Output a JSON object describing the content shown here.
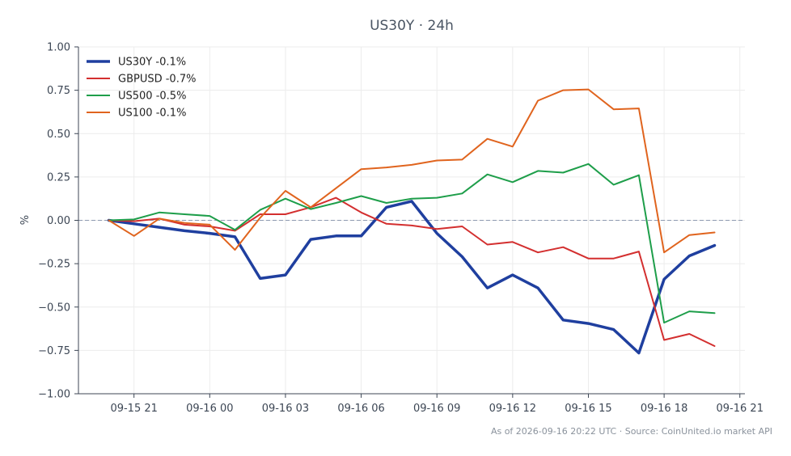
{
  "chart_data": {
    "type": "line",
    "title": "US30Y · 24h",
    "xlabel": "",
    "ylabel": "%",
    "ylim": [
      -1.0,
      1.0
    ],
    "yticks": [
      "1.00",
      "0.75",
      "0.50",
      "0.25",
      "0.00",
      "−0.25",
      "−0.50",
      "−0.75",
      "−1.00"
    ],
    "ytick_values": [
      1.0,
      0.75,
      0.5,
      0.25,
      0.0,
      -0.25,
      -0.5,
      -0.75,
      -1.0
    ],
    "xticks": [
      "09-15 21",
      "09-16 00",
      "09-16 03",
      "09-16 06",
      "09-16 09",
      "09-16 12",
      "09-16 15",
      "09-16 18",
      "09-16 21"
    ],
    "xtick_positions": [
      1,
      4,
      7,
      10,
      13,
      16,
      19,
      22,
      25
    ],
    "x_hours": [
      0,
      1,
      2,
      3,
      4,
      5,
      6,
      7,
      8,
      9,
      10,
      11,
      12,
      13,
      14,
      15,
      16,
      17,
      18,
      19,
      20,
      21,
      22,
      23,
      24
    ],
    "xlim": [
      -1.2,
      25.2
    ],
    "grid": true,
    "legend_position": "top-left",
    "baseline": 0.0,
    "series": [
      {
        "name": "US30Y -0.1%",
        "color": "#1f3f9f",
        "width": 3.5,
        "values": [
          0.0,
          -0.02,
          -0.04,
          -0.06,
          -0.075,
          -0.095,
          -0.335,
          -0.315,
          -0.11,
          -0.09,
          -0.09,
          0.075,
          0.11,
          -0.075,
          -0.21,
          -0.39,
          -0.315,
          -0.39,
          -0.575,
          -0.595,
          -0.63,
          -0.765,
          -0.34,
          -0.205,
          -0.145
        ]
      },
      {
        "name": "GBPUSD -0.7%",
        "color": "#d32f2f",
        "width": 2,
        "values": [
          0.0,
          -0.005,
          0.01,
          -0.025,
          -0.035,
          -0.06,
          0.035,
          0.035,
          0.075,
          0.13,
          0.045,
          -0.02,
          -0.03,
          -0.05,
          -0.035,
          -0.14,
          -0.125,
          -0.185,
          -0.155,
          -0.22,
          -0.22,
          -0.18,
          -0.69,
          -0.655,
          -0.725
        ]
      },
      {
        "name": "US500 -0.5%",
        "color": "#1e9e4a",
        "width": 2,
        "values": [
          0.0,
          0.005,
          0.045,
          0.035,
          0.025,
          -0.055,
          0.06,
          0.125,
          0.065,
          0.1,
          0.14,
          0.1,
          0.125,
          0.13,
          0.155,
          0.265,
          0.22,
          0.285,
          0.275,
          0.325,
          0.205,
          0.26,
          -0.59,
          -0.525,
          -0.535
        ]
      },
      {
        "name": "US100 -0.1%",
        "color": "#e0641e",
        "width": 2,
        "values": [
          0.0,
          -0.09,
          0.01,
          -0.015,
          -0.025,
          -0.17,
          0.015,
          0.17,
          0.075,
          0.185,
          0.295,
          0.305,
          0.32,
          0.345,
          0.35,
          0.47,
          0.425,
          0.69,
          0.75,
          0.755,
          0.64,
          0.645,
          -0.185,
          -0.085,
          -0.07
        ]
      }
    ]
  },
  "footer": {
    "text": "As of 2026-09-16 20:22 UTC · Source: CoinUnited.io market API"
  }
}
